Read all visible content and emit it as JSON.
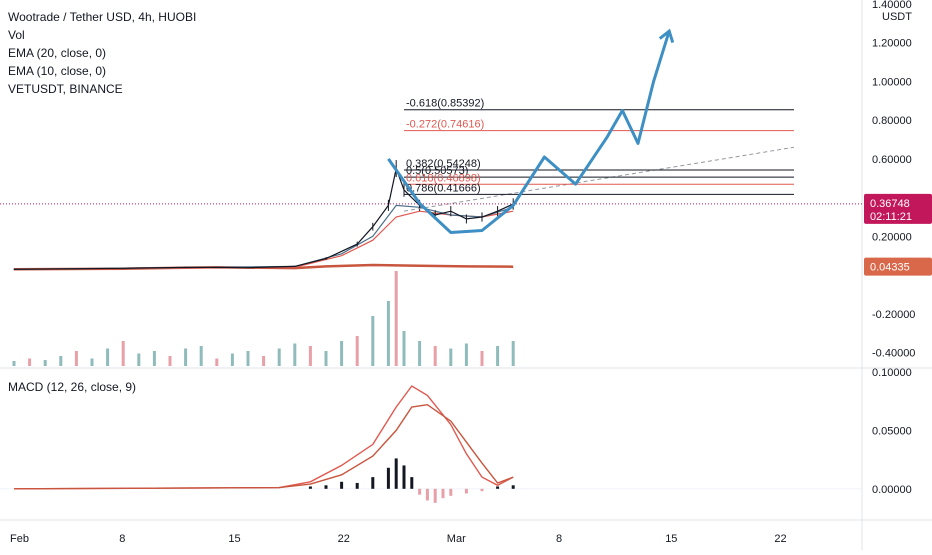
{
  "legend": {
    "title": "Wootrade / Tether USD, 4h, HUOBI",
    "lines": [
      "Vol",
      "EMA (20, close, 0)",
      "EMA (10, close, 0)",
      "VETUSDT, BINANCE"
    ],
    "macd_title": "MACD (12, 26, close, 9)"
  },
  "colors": {
    "candle": "#131722",
    "ema20": "#e0584f",
    "ema10": "#4a6f8a",
    "vet": "#c8553d",
    "projection": "#3d8fc4",
    "price_tag": "#c2185b",
    "vet_tag": "#d9684a",
    "fib_black": "#131722",
    "fib_red": "#e0584f",
    "macd_line": "#e0584f",
    "signal_line": "#c8553d",
    "hist_pos": "#131722",
    "hist_neg": "#e8a0a8",
    "vol_up": "#8fbcbb",
    "vol_down": "#e8a0a8"
  },
  "chart_data": [
    {
      "type": "candlestick",
      "title": "Wootrade / Tether USD, 4h, HUOBI",
      "price_axis_unit": "USDT",
      "y_ticks": [
        "1.40000",
        "1.20000",
        "1.00000",
        "0.80000",
        "0.60000",
        "0.20000",
        "-0.20000",
        "-0.40000"
      ],
      "ylim": [
        -0.48,
        1.4
      ],
      "x_ticks": [
        "Feb",
        "8",
        "15",
        "22",
        "Mar",
        "8",
        "15",
        "22"
      ],
      "x_days": [
        1,
        8,
        15,
        22,
        29,
        36,
        43,
        50
      ],
      "last_price": "0.36748",
      "countdown": "02:11:21",
      "vet_price": "0.04335",
      "price_path": [
        [
          1,
          0.03
        ],
        [
          8,
          0.035
        ],
        [
          12,
          0.04
        ],
        [
          16,
          0.038
        ],
        [
          19,
          0.045
        ],
        [
          21,
          0.085
        ],
        [
          23,
          0.16
        ],
        [
          24,
          0.25
        ],
        [
          25,
          0.36
        ],
        [
          25.5,
          0.55
        ],
        [
          26,
          0.44
        ],
        [
          27,
          0.36
        ],
        [
          28,
          0.31
        ],
        [
          29,
          0.33
        ],
        [
          30,
          0.29
        ],
        [
          31,
          0.3
        ],
        [
          32,
          0.33
        ],
        [
          33,
          0.367
        ]
      ],
      "ema20_path": [
        [
          1,
          0.03
        ],
        [
          19,
          0.04
        ],
        [
          22,
          0.1
        ],
        [
          24,
          0.18
        ],
        [
          25.5,
          0.3
        ],
        [
          27,
          0.33
        ],
        [
          29,
          0.31
        ],
        [
          31,
          0.3
        ],
        [
          33,
          0.33
        ]
      ],
      "ema10_path": [
        [
          1,
          0.03
        ],
        [
          19,
          0.045
        ],
        [
          22,
          0.11
        ],
        [
          24,
          0.2
        ],
        [
          25.5,
          0.36
        ],
        [
          27,
          0.35
        ],
        [
          29,
          0.31
        ],
        [
          31,
          0.3
        ],
        [
          33,
          0.35
        ]
      ],
      "vet_path": [
        [
          1,
          0.03
        ],
        [
          8,
          0.033
        ],
        [
          14,
          0.04
        ],
        [
          19,
          0.036
        ],
        [
          21,
          0.045
        ],
        [
          24,
          0.052
        ],
        [
          27,
          0.048
        ],
        [
          30,
          0.045
        ],
        [
          33,
          0.043
        ]
      ],
      "projection_path": [
        [
          25,
          0.6
        ],
        [
          27,
          0.37
        ],
        [
          29,
          0.22
        ],
        [
          31,
          0.23
        ],
        [
          33,
          0.36
        ],
        [
          35,
          0.61
        ],
        [
          37,
          0.47
        ],
        [
          39,
          0.71
        ],
        [
          40,
          0.85
        ],
        [
          41,
          0.68
        ],
        [
          42,
          1.0
        ],
        [
          43,
          1.26
        ]
      ],
      "trend_line": {
        "from": [
          26,
          0.33
        ],
        "to": [
          51,
          0.66
        ]
      },
      "fib_levels": [
        {
          "label": "-0.618(0.85392)",
          "value": 0.85392,
          "color": "black"
        },
        {
          "label": "-0.272(0.74616)",
          "value": 0.74616,
          "color": "red"
        },
        {
          "label": "0.382(0.54248)",
          "value": 0.54248,
          "color": "black"
        },
        {
          "label": "0.5(0.50573)",
          "value": 0.50573,
          "color": "black"
        },
        {
          "label": "0.618(0.46898)",
          "value": 0.46898,
          "color": "red"
        },
        {
          "label": "0.786(0.41666)",
          "value": 0.41666,
          "color": "black"
        }
      ],
      "fib_x_range": [
        26,
        51
      ]
    },
    {
      "type": "bar",
      "title": "Vol",
      "volume_bars": [
        [
          1,
          0.1
        ],
        [
          2,
          0.15
        ],
        [
          3,
          0.12
        ],
        [
          4,
          0.2
        ],
        [
          5,
          0.3
        ],
        [
          6,
          0.15
        ],
        [
          7,
          0.35
        ],
        [
          8,
          0.5
        ],
        [
          9,
          0.25
        ],
        [
          10,
          0.3
        ],
        [
          11,
          0.2
        ],
        [
          12,
          0.35
        ],
        [
          13,
          0.4
        ],
        [
          14,
          0.15
        ],
        [
          15,
          0.25
        ],
        [
          16,
          0.3
        ],
        [
          17,
          0.2
        ],
        [
          18,
          0.35
        ],
        [
          19,
          0.45
        ],
        [
          20,
          0.4
        ],
        [
          21,
          0.3
        ],
        [
          22,
          0.5
        ],
        [
          23,
          0.6
        ],
        [
          24,
          1.0
        ],
        [
          25,
          1.3
        ],
        [
          25.5,
          1.9
        ],
        [
          26,
          0.7
        ],
        [
          27,
          0.5
        ],
        [
          28,
          0.4
        ],
        [
          29,
          0.35
        ],
        [
          30,
          0.45
        ],
        [
          31,
          0.3
        ],
        [
          32,
          0.4
        ],
        [
          33,
          0.5
        ]
      ]
    },
    {
      "type": "line",
      "title": "MACD (12, 26, close, 9)",
      "y_ticks": [
        "0.10000",
        "0.05000",
        "0.00000"
      ],
      "ylim": [
        -0.025,
        0.1
      ],
      "macd_path": [
        [
          1,
          0.0
        ],
        [
          18,
          0.001
        ],
        [
          20,
          0.006
        ],
        [
          22,
          0.02
        ],
        [
          24,
          0.038
        ],
        [
          25.5,
          0.07
        ],
        [
          26.5,
          0.088
        ],
        [
          27.5,
          0.08
        ],
        [
          29,
          0.055
        ],
        [
          30,
          0.03
        ],
        [
          31,
          0.01
        ],
        [
          32,
          0.003
        ],
        [
          33,
          0.01
        ]
      ],
      "signal_path": [
        [
          1,
          0.0
        ],
        [
          18,
          0.001
        ],
        [
          20,
          0.004
        ],
        [
          22,
          0.012
        ],
        [
          24,
          0.028
        ],
        [
          25.5,
          0.05
        ],
        [
          26.5,
          0.07
        ],
        [
          27.5,
          0.072
        ],
        [
          29,
          0.058
        ],
        [
          30,
          0.04
        ],
        [
          31,
          0.022
        ],
        [
          32,
          0.005
        ],
        [
          33,
          0.01
        ]
      ],
      "histogram": [
        [
          20,
          0.002
        ],
        [
          21,
          0.003
        ],
        [
          22,
          0.006
        ],
        [
          23,
          0.005
        ],
        [
          24,
          0.01
        ],
        [
          25,
          0.018
        ],
        [
          25.5,
          0.026
        ],
        [
          26,
          0.02
        ],
        [
          26.5,
          0.01
        ],
        [
          27,
          -0.005
        ],
        [
          27.5,
          -0.01
        ],
        [
          28,
          -0.012
        ],
        [
          28.5,
          -0.008
        ],
        [
          29,
          -0.006
        ],
        [
          30,
          -0.004
        ],
        [
          31,
          -0.002
        ],
        [
          32,
          0.002
        ],
        [
          33,
          0.003
        ]
      ]
    }
  ]
}
